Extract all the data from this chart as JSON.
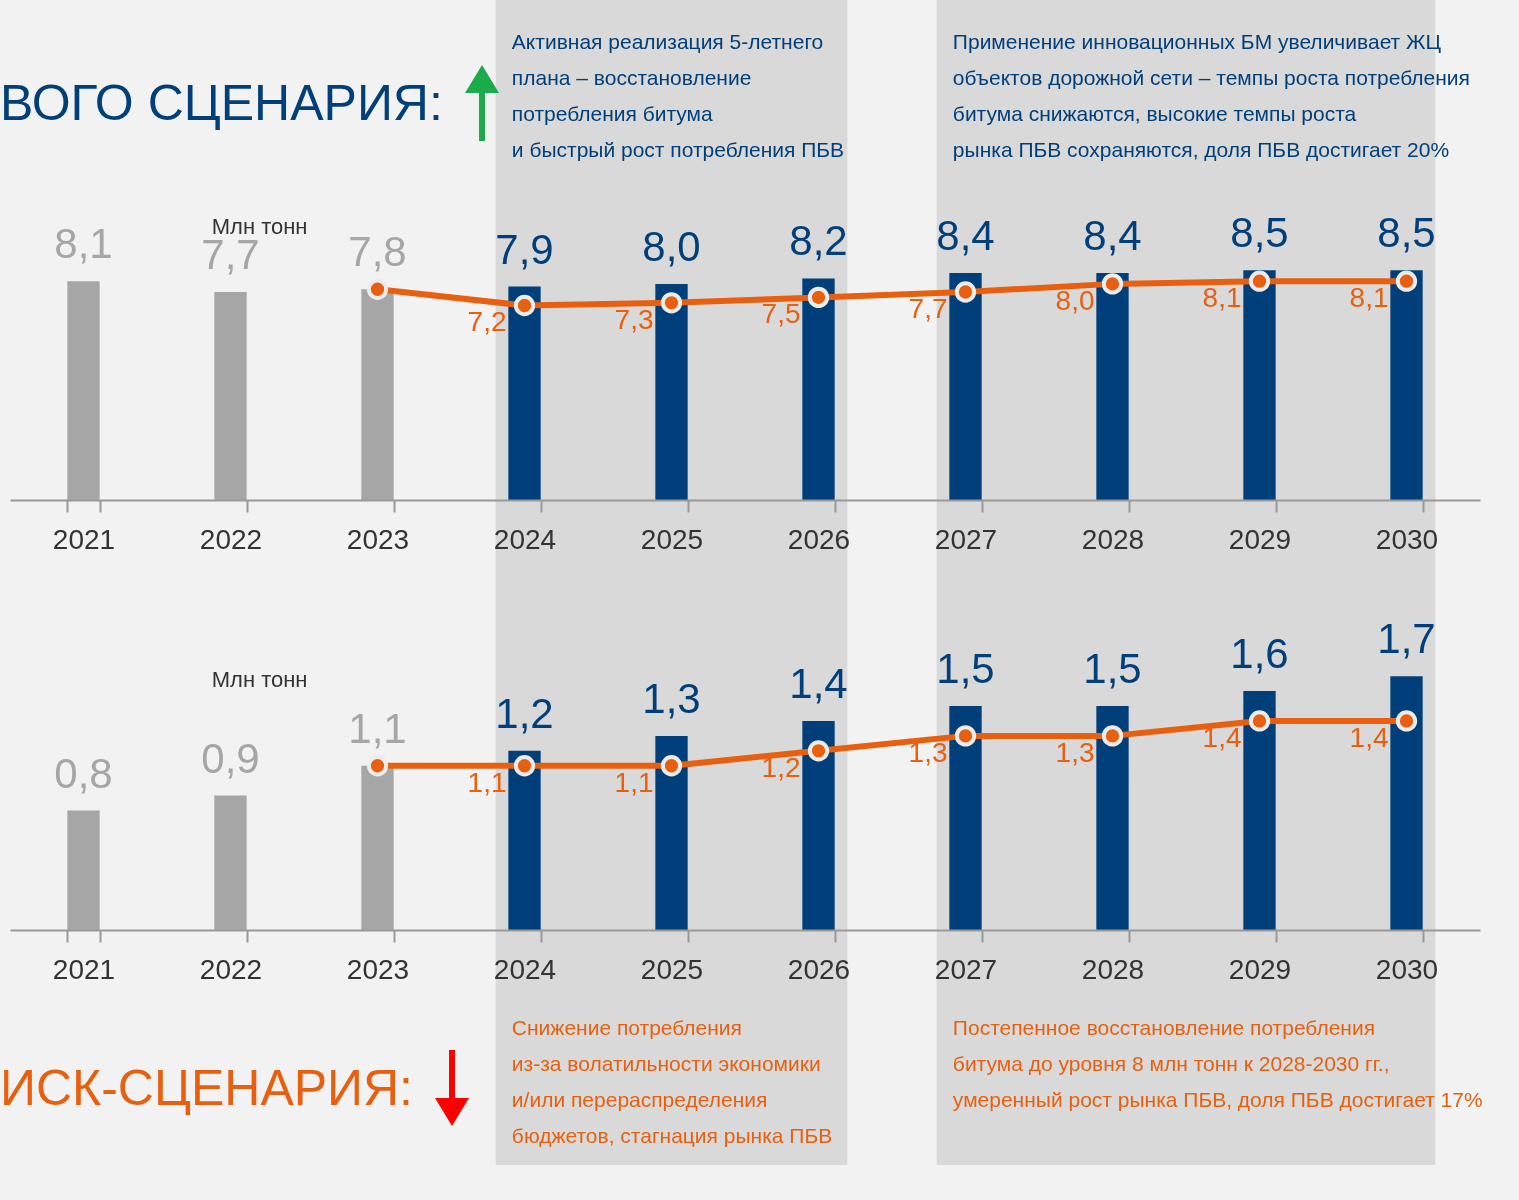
{
  "chart_data": [
    {
      "type": "bar",
      "title": "ВОГО СЦЕНАРИЯ:",
      "ylabel": "Млн тонн",
      "categories": [
        "2021",
        "2022",
        "2023",
        "2024",
        "2025",
        "2026",
        "2027",
        "2028",
        "2029",
        "2030"
      ],
      "marker": "circle",
      "series": [
        {
          "type": "bar",
          "colors": [
            "#a6a6a6",
            "#a6a6a6",
            "#a6a6a6",
            "#003f7a",
            "#003f7a",
            "#003f7a",
            "#003f7a",
            "#003f7a",
            "#003f7a",
            "#003f7a"
          ],
          "values": [
            8.1,
            7.7,
            7.8,
            7.9,
            8.0,
            8.2,
            8.4,
            8.4,
            8.5,
            8.5
          ],
          "value_labels": [
            "8,1",
            "7,7",
            "7,8",
            "7,9",
            "8,0",
            "8,2",
            "8,4",
            "8,4",
            "8,5",
            "8,5"
          ]
        },
        {
          "type": "line",
          "color": "#e8600f",
          "values": [
            null,
            null,
            7.8,
            7.2,
            7.3,
            7.5,
            7.7,
            8.0,
            8.1,
            8.1
          ],
          "value_labels": [
            null,
            null,
            null,
            "7,2",
            "7,3",
            "7,5",
            "7,7",
            "8,0",
            "8,1",
            "8,1"
          ]
        }
      ],
      "bands": [
        {
          "axis": "x",
          "from": "2024",
          "to": "2026",
          "color": "#d9d9d9",
          "label": "Активная реализация 5-летнего\nплана – восстановление\nпотребления битума\nи быстрый рост потребления ПБВ"
        },
        {
          "axis": "x",
          "from": "2027",
          "to": "2030",
          "color": "#d9d9d9",
          "label": "Применение инновационных БМ увеличивает ЖЦ\nобъектов дорожной сети – темпы роста потребления\nбитума снижаются, высокие темпы роста\nрынка ПБВ сохраняются, доля ПБВ достигает 20%"
        }
      ]
    },
    {
      "type": "bar",
      "title": "ИСК-СЦЕНАРИЯ:",
      "ylabel": "Млн тонн",
      "categories": [
        "2021",
        "2022",
        "2023",
        "2024",
        "2025",
        "2026",
        "2027",
        "2028",
        "2029",
        "2030"
      ],
      "marker": "circle",
      "series": [
        {
          "type": "bar",
          "colors": [
            "#a6a6a6",
            "#a6a6a6",
            "#a6a6a6",
            "#003f7a",
            "#003f7a",
            "#003f7a",
            "#003f7a",
            "#003f7a",
            "#003f7a",
            "#003f7a"
          ],
          "values": [
            0.8,
            0.9,
            1.1,
            1.2,
            1.3,
            1.4,
            1.5,
            1.5,
            1.6,
            1.7
          ],
          "value_labels": [
            "0,8",
            "0,9",
            "1,1",
            "1,2",
            "1,3",
            "1,4",
            "1,5",
            "1,5",
            "1,6",
            "1,7"
          ]
        },
        {
          "type": "line",
          "color": "#e8600f",
          "values": [
            null,
            null,
            1.1,
            1.1,
            1.1,
            1.2,
            1.3,
            1.3,
            1.4,
            1.4
          ],
          "value_labels": [
            null,
            null,
            null,
            "1,1",
            "1,1",
            "1,2",
            "1,3",
            "1,3",
            "1,4",
            "1,4"
          ]
        }
      ],
      "bands": [
        {
          "axis": "x",
          "from": "2024",
          "to": "2026",
          "color": "#d9d9d9",
          "label": "Снижение потребления\nиз-за волатильности экономики\nи/или перераспределения\nбюджетов, стагнация рынка ПБВ"
        },
        {
          "axis": "x",
          "from": "2027",
          "to": "2030",
          "color": "#d9d9d9",
          "label": "Постепенное восстановление потребления\nбитума до уровня 8 млн тонн к 2028-2030 гг.,\nумеренный рост рынка ПБВ, доля ПБВ достигает 17%"
        }
      ]
    }
  ]
}
